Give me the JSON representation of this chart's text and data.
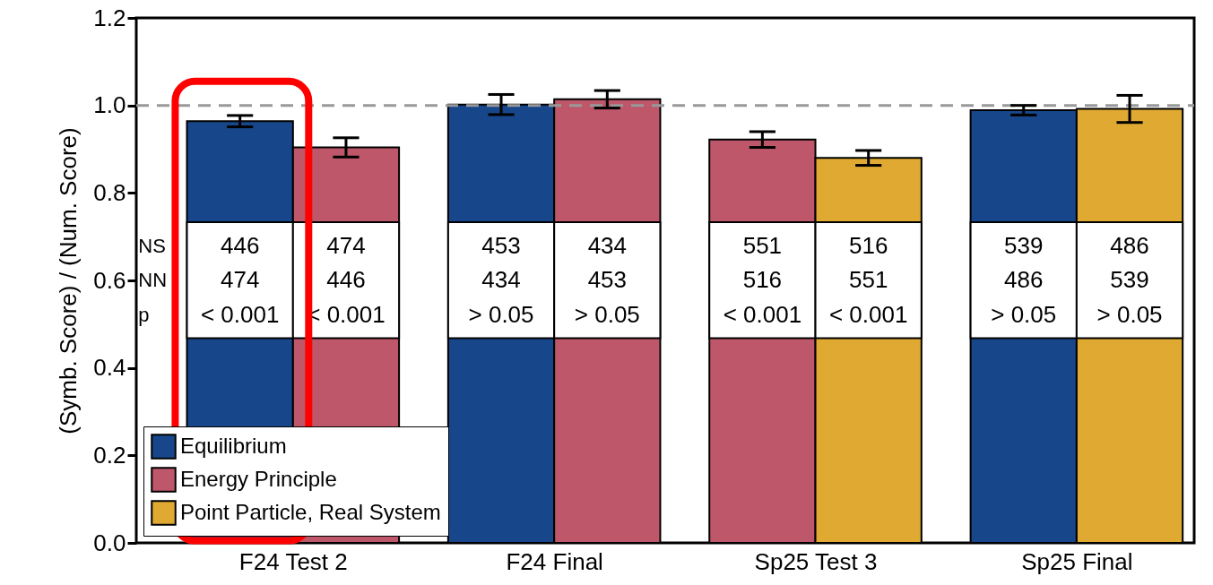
{
  "chart_data": {
    "type": "bar",
    "ylabel": "(Symb. Score) / (Num. Score)",
    "categories": [
      "F24 Test 2",
      "F24 Final",
      "Sp25 Test 3",
      "Sp25 Final"
    ],
    "series": [
      {
        "name": "Equilibrium",
        "color": "#17478a",
        "values": [
          0.964,
          1.002,
          null,
          0.989
        ],
        "errors": [
          0.013,
          0.023,
          null,
          0.011
        ]
      },
      {
        "name": "Energy Principle",
        "color": "#bd5769",
        "values": [
          0.904,
          1.014,
          0.922,
          null
        ],
        "errors": [
          0.022,
          0.02,
          0.018,
          null
        ]
      },
      {
        "name": "Point Particle, Real System",
        "color": "#dfa932",
        "values": [
          null,
          null,
          0.88,
          0.992
        ],
        "errors": [
          null,
          null,
          0.017,
          0.031
        ]
      }
    ],
    "ylim": [
      0,
      1.2
    ],
    "yticks": [
      {
        "value": 0,
        "label": "0.0"
      },
      {
        "value": 0.2,
        "label": "0.2"
      },
      {
        "value": 0.4,
        "label": "0.4"
      },
      {
        "value": 0.6,
        "label": "0.6"
      },
      {
        "value": 0.8,
        "label": "0.8"
      },
      {
        "value": 1,
        "label": "1.0"
      },
      {
        "value": 1.2,
        "label": "1.2"
      }
    ],
    "ref_lines": [
      {
        "axis": "y",
        "value": 1,
        "color": "#999999",
        "line_style": "dashed"
      }
    ],
    "annotations": [
      "NS",
      "NN",
      "p",
      "446",
      "474",
      "< 0.001",
      "474",
      "446",
      "< 0.001",
      "453",
      "434",
      "> 0.05",
      "434",
      "453",
      "> 0.05",
      "551",
      "516",
      "< 0.001",
      "516",
      "551",
      "< 0.001",
      "539",
      "486",
      "> 0.05",
      "486",
      "539",
      "> 0.05"
    ],
    "legend": "bottom left",
    "grid": false
  }
}
